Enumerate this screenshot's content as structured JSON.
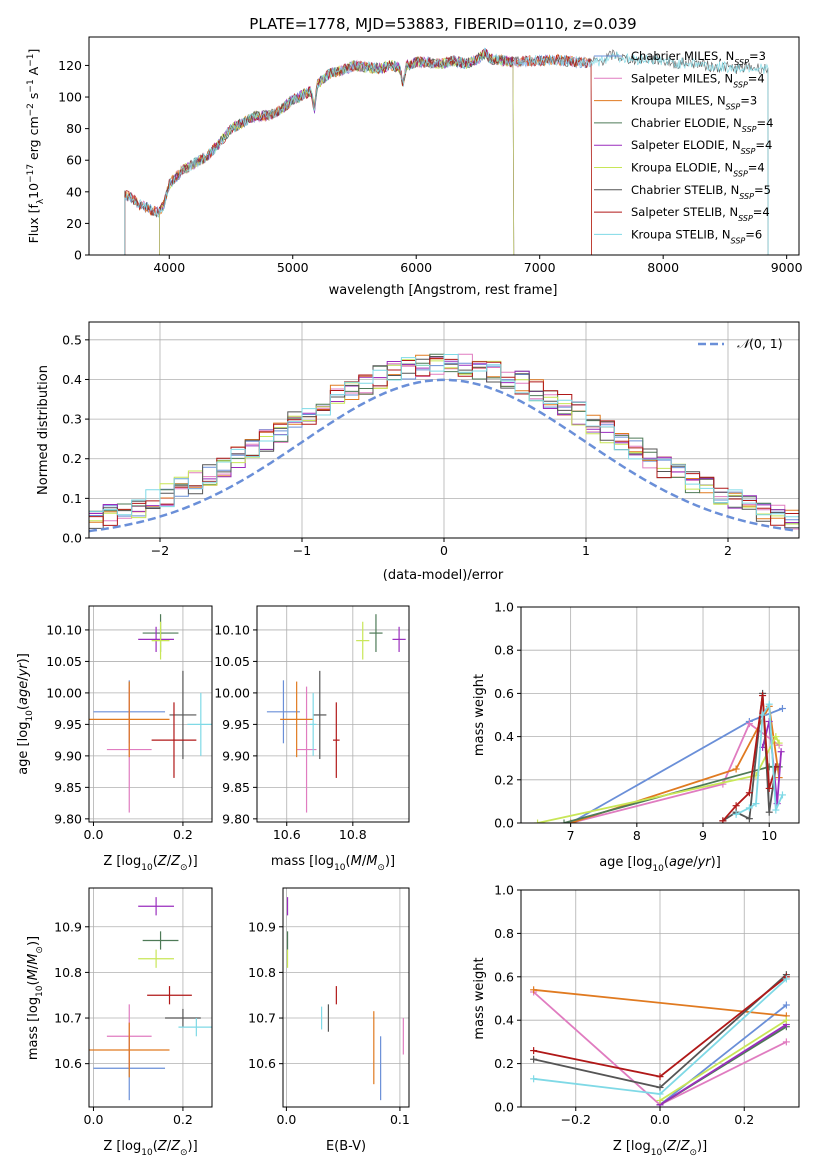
{
  "figure_title": "PLATE=1778, MJD=53883, FIBERID=0110, z=0.039",
  "colors": {
    "chabrier_miles": "#6a8fd8",
    "salpeter_miles": "#e07cc0",
    "kroupa_miles": "#e07a20",
    "chabrier_elodie": "#4e7a57",
    "salpeter_elodie": "#9a2dbe",
    "kroupa_elodie": "#c8e657",
    "chabrier_stelib": "#555555",
    "salpeter_stelib": "#b01818",
    "kroupa_stelib": "#7fd9e6"
  },
  "chart_data": [
    {
      "id": "spectrum",
      "type": "line",
      "title": "PLATE=1778, MJD=53883, FIBERID=0110, z=0.039",
      "xlabel": "wavelength [Angstrom, rest frame]",
      "ylabel": "Flux [f_λ 10^-17 erg cm^-2 s^-1 A^-1]",
      "xlim": [
        3350,
        9100
      ],
      "ylim": [
        0,
        138
      ],
      "xticks": [
        4000,
        5000,
        6000,
        7000,
        8000,
        9000
      ],
      "yticks": [
        0,
        20,
        40,
        60,
        80,
        100,
        120
      ],
      "grid": false,
      "legend_position": "top-right",
      "spectrum_points": [
        [
          3640,
          38
        ],
        [
          3700,
          36
        ],
        [
          3760,
          32
        ],
        [
          3820,
          30
        ],
        [
          3870,
          28
        ],
        [
          3920,
          27
        ],
        [
          3960,
          33
        ],
        [
          4000,
          45
        ],
        [
          4100,
          53
        ],
        [
          4200,
          58
        ],
        [
          4300,
          62
        ],
        [
          4400,
          70
        ],
        [
          4500,
          80
        ],
        [
          4600,
          84
        ],
        [
          4700,
          88
        ],
        [
          4800,
          88
        ],
        [
          4900,
          92
        ],
        [
          5000,
          98
        ],
        [
          5100,
          102
        ],
        [
          5150,
          104
        ],
        [
          5175,
          92
        ],
        [
          5200,
          108
        ],
        [
          5300,
          115
        ],
        [
          5400,
          117
        ],
        [
          5500,
          120
        ],
        [
          5600,
          119
        ],
        [
          5700,
          118
        ],
        [
          5800,
          120
        ],
        [
          5870,
          118
        ],
        [
          5893,
          108
        ],
        [
          5920,
          120
        ],
        [
          6000,
          122
        ],
        [
          6100,
          122
        ],
        [
          6200,
          121
        ],
        [
          6300,
          123
        ],
        [
          6400,
          121
        ],
        [
          6500,
          124
        ],
        [
          6563,
          128
        ],
        [
          6600,
          124
        ],
        [
          6700,
          123
        ],
        [
          6800,
          122
        ],
        [
          6900,
          123
        ],
        [
          7000,
          123
        ],
        [
          7100,
          124
        ],
        [
          7200,
          123
        ],
        [
          7300,
          122
        ],
        [
          7400,
          122
        ],
        [
          7500,
          123
        ],
        [
          7600,
          127
        ],
        [
          7700,
          124
        ],
        [
          7800,
          124
        ],
        [
          7900,
          124
        ],
        [
          8000,
          123
        ],
        [
          8100,
          121
        ],
        [
          8200,
          122
        ],
        [
          8300,
          121
        ],
        [
          8400,
          119
        ],
        [
          8500,
          119
        ],
        [
          8600,
          118
        ],
        [
          8700,
          119
        ],
        [
          8800,
          118
        ],
        [
          8850,
          118
        ]
      ],
      "series": [
        {
          "name": "Chabrier MILES, N_SSP=3",
          "color": "#6a8fd8",
          "range": [
            3640,
            7420
          ]
        },
        {
          "name": "Salpeter MILES, N_SSP=4",
          "color": "#e07cc0",
          "range": [
            3640,
            7420
          ]
        },
        {
          "name": "Kroupa MILES, N_SSP=3",
          "color": "#e07a20",
          "range": [
            3640,
            7420
          ]
        },
        {
          "name": "Chabrier ELODIE, N_SSP=4",
          "color": "#4e7a57",
          "range": [
            3920,
            6790
          ]
        },
        {
          "name": "Salpeter ELODIE, N_SSP=4",
          "color": "#9a2dbe",
          "range": [
            3920,
            6790
          ]
        },
        {
          "name": "Kroupa ELODIE, N_SSP=4",
          "color": "#c8e657",
          "range": [
            3920,
            6790
          ]
        },
        {
          "name": "Chabrier STELIB, N_SSP=5",
          "color": "#555555",
          "range": [
            3640,
            8850
          ]
        },
        {
          "name": "Salpeter STELIB, N_SSP=4",
          "color": "#b01818",
          "range": [
            3640,
            7420
          ]
        },
        {
          "name": "Kroupa STELIB, N_SSP=6",
          "color": "#7fd9e6",
          "range": [
            3640,
            8850
          ]
        }
      ]
    },
    {
      "id": "residuals",
      "type": "line",
      "xlabel": "(data-model)/error",
      "ylabel": "Normed distribution",
      "xlim": [
        -2.5,
        2.5
      ],
      "ylim": [
        0,
        0.545
      ],
      "xticks": [
        -2,
        -1,
        0,
        1,
        2
      ],
      "yticks": [
        0.0,
        0.1,
        0.2,
        0.3,
        0.4,
        0.5
      ],
      "grid": true,
      "legend_position": "top-right",
      "reference": {
        "name": "N(0,1)",
        "color": "#6a8fd8",
        "style": "dashed"
      },
      "histogram_bin_width": 0.1,
      "histogram_note": "nine step histograms, one per model, scattered around N(0,1)"
    },
    {
      "id": "age_vs_Z",
      "type": "scatter",
      "xlabel": "Z [log10(Z/Z_sun)]",
      "ylabel": "age [log10(age/yr)]",
      "xlim": [
        -0.01,
        0.265
      ],
      "ylim": [
        9.795,
        10.138
      ],
      "xticks": [
        0.0,
        0.2
      ],
      "yticks": [
        9.8,
        9.85,
        9.9,
        9.95,
        10.0,
        10.05,
        10.1
      ],
      "grid": true,
      "points": [
        {
          "model": "chabrier_miles",
          "x": 0.08,
          "y": 9.97,
          "xerr": 0.08,
          "yerr": 0.05
        },
        {
          "model": "salpeter_miles",
          "x": 0.08,
          "y": 9.91,
          "xerr": 0.05,
          "yerr": 0.1
        },
        {
          "model": "kroupa_miles",
          "x": 0.08,
          "y": 9.958,
          "xerr": 0.09,
          "yerr": 0.06
        },
        {
          "model": "chabrier_elodie",
          "x": 0.15,
          "y": 10.095,
          "xerr": 0.04,
          "yerr": 0.03
        },
        {
          "model": "salpeter_elodie",
          "x": 0.14,
          "y": 10.085,
          "xerr": 0.04,
          "yerr": 0.02
        },
        {
          "model": "kroupa_elodie",
          "x": 0.15,
          "y": 10.083,
          "xerr": 0.02,
          "yerr": 0.03
        },
        {
          "model": "chabrier_stelib",
          "x": 0.2,
          "y": 9.965,
          "xerr": 0.03,
          "yerr": 0.07
        },
        {
          "model": "salpeter_stelib",
          "x": 0.18,
          "y": 9.925,
          "xerr": 0.05,
          "yerr": 0.06
        },
        {
          "model": "kroupa_stelib",
          "x": 0.24,
          "y": 9.95,
          "xerr": 0.03,
          "yerr": 0.05
        }
      ]
    },
    {
      "id": "age_vs_mass",
      "type": "scatter",
      "xlabel": "mass [log10(M/M_sun)]",
      "ylabel": "",
      "xlim": [
        10.51,
        10.97
      ],
      "ylim": [
        9.795,
        10.138
      ],
      "xticks": [
        10.6,
        10.8
      ],
      "yticks": [
        9.8,
        9.85,
        9.9,
        9.95,
        10.0,
        10.05,
        10.1
      ],
      "grid": true,
      "points": [
        {
          "model": "chabrier_miles",
          "x": 10.59,
          "y": 9.97,
          "xerr": 0.05,
          "yerr": 0.05
        },
        {
          "model": "salpeter_miles",
          "x": 10.66,
          "y": 9.91,
          "xerr": 0.03,
          "yerr": 0.1
        },
        {
          "model": "kroupa_miles",
          "x": 10.63,
          "y": 9.958,
          "xerr": 0.05,
          "yerr": 0.06
        },
        {
          "model": "chabrier_elodie",
          "x": 10.87,
          "y": 10.095,
          "xerr": 0.02,
          "yerr": 0.03
        },
        {
          "model": "salpeter_elodie",
          "x": 10.94,
          "y": 10.085,
          "xerr": 0.02,
          "yerr": 0.02
        },
        {
          "model": "kroupa_elodie",
          "x": 10.83,
          "y": 10.083,
          "xerr": 0.02,
          "yerr": 0.03
        },
        {
          "model": "chabrier_stelib",
          "x": 10.7,
          "y": 9.965,
          "xerr": 0.02,
          "yerr": 0.07
        },
        {
          "model": "salpeter_stelib",
          "x": 10.75,
          "y": 9.925,
          "xerr": 0.01,
          "yerr": 0.06
        },
        {
          "model": "kroupa_stelib",
          "x": 10.68,
          "y": 9.95,
          "xerr": 0.01,
          "yerr": 0.05
        }
      ]
    },
    {
      "id": "mass_weight_vs_age",
      "type": "line",
      "xlabel": "age [log10(age/yr)]",
      "ylabel": "mass weight",
      "xlim": [
        6.25,
        10.45
      ],
      "ylim": [
        0,
        1
      ],
      "xticks": [
        7,
        8,
        9,
        10
      ],
      "yticks": [
        0.0,
        0.2,
        0.4,
        0.6,
        0.8,
        1.0
      ],
      "grid": true,
      "series": [
        {
          "model": "chabrier_miles",
          "x": [
            7.0,
            9.7,
            10.2
          ],
          "y": [
            0.0,
            0.47,
            0.53
          ]
        },
        {
          "model": "salpeter_miles",
          "x": [
            7.0,
            9.3,
            9.7,
            10.15
          ],
          "y": [
            0.0,
            0.18,
            0.46,
            0.36
          ]
        },
        {
          "model": "kroupa_miles",
          "x": [
            7.0,
            9.5,
            10.0,
            10.15
          ],
          "y": [
            0.0,
            0.25,
            0.54,
            0.21
          ]
        },
        {
          "model": "chabrier_elodie",
          "x": [
            6.9,
            10.0,
            10.15
          ],
          "y": [
            0.0,
            0.26,
            0.26
          ]
        },
        {
          "model": "salpeter_elodie",
          "x": [
            9.9,
            10.0,
            10.12,
            10.18
          ],
          "y": [
            0.35,
            0.47,
            0.09,
            0.33
          ]
        },
        {
          "model": "kroupa_elodie",
          "x": [
            6.5,
            9.8,
            10.1,
            10.15
          ],
          "y": [
            0.0,
            0.22,
            0.4,
            0.37
          ]
        },
        {
          "model": "chabrier_stelib",
          "x": [
            9.3,
            9.5,
            9.7,
            9.9,
            10.0,
            10.1
          ],
          "y": [
            0.01,
            0.05,
            0.02,
            0.6,
            0.05,
            0.26
          ]
        },
        {
          "model": "salpeter_stelib",
          "x": [
            9.3,
            9.5,
            9.7,
            9.9,
            10.0,
            10.1
          ],
          "y": [
            0.01,
            0.08,
            0.14,
            0.59,
            0.16,
            0.26
          ]
        },
        {
          "model": "kroupa_stelib",
          "x": [
            9.5,
            9.7,
            9.8,
            9.9,
            10.0,
            10.1,
            10.2
          ],
          "y": [
            0.04,
            0.07,
            0.09,
            0.5,
            0.55,
            0.06,
            0.13
          ]
        }
      ]
    },
    {
      "id": "mass_vs_Z",
      "type": "scatter",
      "xlabel": "Z [log10(Z/Z_sun)]",
      "ylabel": "mass [log10(M/M_sun)]",
      "xlim": [
        -0.01,
        0.265
      ],
      "ylim": [
        10.505,
        10.985
      ],
      "xticks": [
        0.0,
        0.2
      ],
      "yticks": [
        10.6,
        10.7,
        10.8,
        10.9
      ],
      "grid": true,
      "points": [
        {
          "model": "chabrier_miles",
          "x": 0.08,
          "y": 10.59,
          "xerr": 0.08,
          "yerr": 0.07
        },
        {
          "model": "salpeter_miles",
          "x": 0.08,
          "y": 10.66,
          "xerr": 0.05,
          "yerr": 0.07
        },
        {
          "model": "kroupa_miles",
          "x": 0.08,
          "y": 10.63,
          "xerr": 0.09,
          "yerr": 0.06
        },
        {
          "model": "chabrier_elodie",
          "x": 0.15,
          "y": 10.87,
          "xerr": 0.04,
          "yerr": 0.02
        },
        {
          "model": "salpeter_elodie",
          "x": 0.14,
          "y": 10.945,
          "xerr": 0.04,
          "yerr": 0.02
        },
        {
          "model": "kroupa_elodie",
          "x": 0.14,
          "y": 10.83,
          "xerr": 0.04,
          "yerr": 0.02
        },
        {
          "model": "chabrier_stelib",
          "x": 0.2,
          "y": 10.7,
          "xerr": 0.04,
          "yerr": 0.02
        },
        {
          "model": "salpeter_stelib",
          "x": 0.17,
          "y": 10.75,
          "xerr": 0.05,
          "yerr": 0.02
        },
        {
          "model": "kroupa_stelib",
          "x": 0.23,
          "y": 10.68,
          "xerr": 0.04,
          "yerr": 0.02
        }
      ]
    },
    {
      "id": "mass_vs_ebv",
      "type": "scatter",
      "xlabel": "E(B-V)",
      "ylabel": "",
      "xlim": [
        -0.003,
        0.108
      ],
      "ylim": [
        10.505,
        10.985
      ],
      "xticks": [
        0.0,
        0.1
      ],
      "yticks": [
        10.6,
        10.7,
        10.8,
        10.9
      ],
      "grid": true,
      "points": [
        {
          "model": "chabrier_miles",
          "x": 0.083,
          "y": 10.59,
          "xerr": 0,
          "yerr": 0.07
        },
        {
          "model": "salpeter_miles",
          "x": 0.103,
          "y": 10.66,
          "xerr": 0,
          "yerr": 0.04
        },
        {
          "model": "kroupa_miles",
          "x": 0.077,
          "y": 10.635,
          "xerr": 0,
          "yerr": 0.08
        },
        {
          "model": "chabrier_elodie",
          "x": 0.001,
          "y": 10.87,
          "xerr": 0,
          "yerr": 0.02
        },
        {
          "model": "salpeter_elodie",
          "x": 0.001,
          "y": 10.945,
          "xerr": 0,
          "yerr": 0.02
        },
        {
          "model": "kroupa_elodie",
          "x": 0.001,
          "y": 10.83,
          "xerr": 0,
          "yerr": 0.02
        },
        {
          "model": "chabrier_stelib",
          "x": 0.037,
          "y": 10.7,
          "xerr": 0,
          "yerr": 0.03
        },
        {
          "model": "salpeter_stelib",
          "x": 0.044,
          "y": 10.75,
          "xerr": 0,
          "yerr": 0.02
        },
        {
          "model": "kroupa_stelib",
          "x": 0.031,
          "y": 10.7,
          "xerr": 0,
          "yerr": 0.025
        }
      ]
    },
    {
      "id": "mass_weight_vs_Z",
      "type": "line",
      "xlabel": "Z [log10(Z/Z_sun)]",
      "ylabel": "mass weight",
      "xlim": [
        -0.33,
        0.33
      ],
      "ylim": [
        0,
        1
      ],
      "xticks": [
        -0.2,
        0.0,
        0.2
      ],
      "yticks": [
        0.0,
        0.2,
        0.4,
        0.6,
        0.8,
        1.0
      ],
      "grid": true,
      "series": [
        {
          "model": "chabrier_miles",
          "x": [
            0.0,
            0.3
          ],
          "y": [
            0.01,
            0.47
          ]
        },
        {
          "model": "salpeter_miles",
          "x": [
            -0.3,
            0.0,
            0.3
          ],
          "y": [
            0.53,
            0.01,
            0.3
          ]
        },
        {
          "model": "kroupa_miles",
          "x": [
            -0.3,
            0.3
          ],
          "y": [
            0.54,
            0.42
          ]
        },
        {
          "model": "chabrier_elodie",
          "x": [
            0.0,
            0.3
          ],
          "y": [
            0.01,
            0.37
          ]
        },
        {
          "model": "salpeter_elodie",
          "x": [
            0.0,
            0.3
          ],
          "y": [
            0.01,
            0.38
          ]
        },
        {
          "model": "kroupa_elodie",
          "x": [
            0.0,
            0.3
          ],
          "y": [
            0.03,
            0.4
          ]
        },
        {
          "model": "chabrier_stelib",
          "x": [
            -0.3,
            0.0,
            0.3
          ],
          "y": [
            0.22,
            0.09,
            0.61
          ]
        },
        {
          "model": "salpeter_stelib",
          "x": [
            -0.3,
            0.0,
            0.3
          ],
          "y": [
            0.26,
            0.14,
            0.6
          ]
        },
        {
          "model": "kroupa_stelib",
          "x": [
            -0.3,
            0.0,
            0.3
          ],
          "y": [
            0.13,
            0.06,
            0.59
          ]
        }
      ]
    }
  ]
}
